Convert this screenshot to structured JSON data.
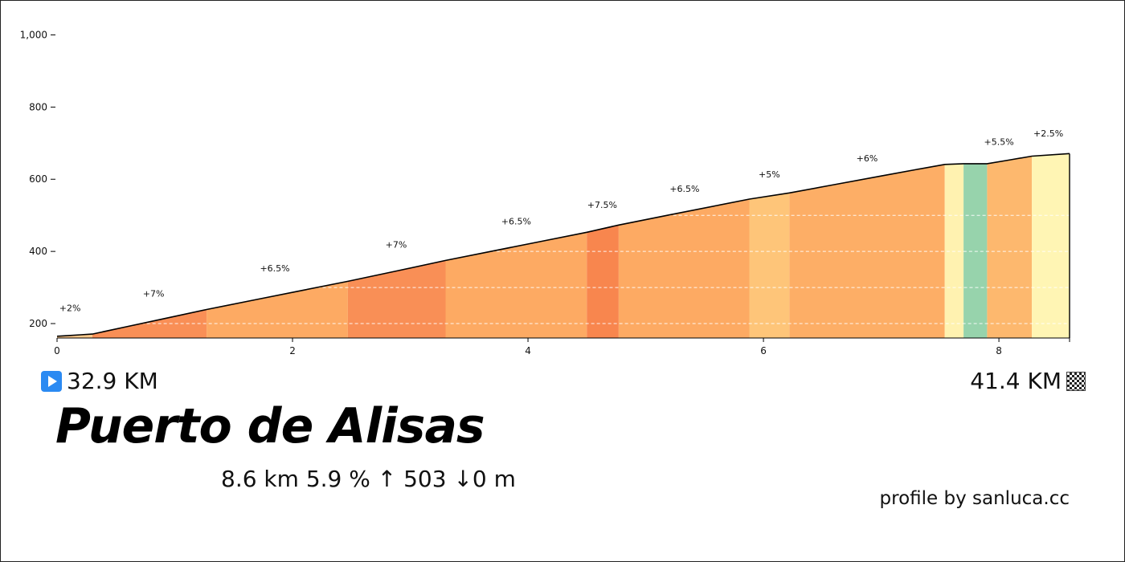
{
  "climb": {
    "name": "Puerto de Alisas",
    "start_km": "32.9 KM",
    "end_km": "41.4 KM",
    "stats": "8.6 km 5.9 %  ↑ 503 ↓0 m",
    "credit": "profile by sanluca.cc",
    "start_icon": "play-start-icon",
    "finish_icon": "checkered-flag-icon"
  },
  "chart_data": {
    "type": "area",
    "title": "",
    "xlabel": "",
    "ylabel": "",
    "xlim": [
      0,
      8.6
    ],
    "ylim": [
      160,
      1050
    ],
    "grid": "dashed horizontal lines inside filled area",
    "x_ticks": [
      {
        "value": 0,
        "label": "0"
      },
      {
        "value": 2,
        "label": "2"
      },
      {
        "value": 4,
        "label": "4"
      },
      {
        "value": 6,
        "label": "6"
      },
      {
        "value": 8,
        "label": "8"
      }
    ],
    "y_ticks": [
      {
        "value": 200,
        "label": "200"
      },
      {
        "value": 400,
        "label": "400"
      },
      {
        "value": 600,
        "label": "600"
      },
      {
        "value": 800,
        "label": "800"
      },
      {
        "value": 1000,
        "label": "1,000"
      }
    ],
    "grid_values": [
      200,
      300,
      400,
      500
    ],
    "segments": [
      {
        "x0": 0.0,
        "x1": 0.3,
        "grade": "+2%",
        "color": "#fec98a"
      },
      {
        "x0": 0.3,
        "x1": 1.27,
        "grade": "+7%",
        "color": "#f98f56"
      },
      {
        "x0": 1.27,
        "x1": 2.47,
        "grade": "+6.5%",
        "color": "#fdaa63"
      },
      {
        "x0": 2.47,
        "x1": 3.3,
        "grade": "+7%",
        "color": "#f98f56"
      },
      {
        "x0": 3.3,
        "x1": 4.5,
        "grade": "+6.5%",
        "color": "#fdaa63"
      },
      {
        "x0": 4.5,
        "x1": 4.77,
        "grade": "+7.5%",
        "color": "#f8864e"
      },
      {
        "x0": 4.77,
        "x1": 5.88,
        "grade": "+6.5%",
        "color": "#fdaa63"
      },
      {
        "x0": 5.88,
        "x1": 6.22,
        "grade": "+5%",
        "color": "#fec579"
      },
      {
        "x0": 6.22,
        "x1": 7.54,
        "grade": "+6%",
        "color": "#fdae66"
      },
      {
        "x0": 7.54,
        "x1": 7.7,
        "grade": "",
        "color": "#fff2b0"
      },
      {
        "x0": 7.7,
        "x1": 7.9,
        "grade": "",
        "color": "#97d3ac"
      },
      {
        "x0": 7.9,
        "x1": 8.28,
        "grade": "+5.5%",
        "color": "#fdb86e"
      },
      {
        "x0": 8.28,
        "x1": 8.6,
        "grade": "+2.5%",
        "color": "#fff5b4"
      }
    ],
    "grade_labels": [
      {
        "x": 0.11,
        "y": 235,
        "text": "+2%"
      },
      {
        "x": 0.82,
        "y": 275,
        "text": "+7%"
      },
      {
        "x": 1.85,
        "y": 345,
        "text": "+6.5%"
      },
      {
        "x": 2.88,
        "y": 410,
        "text": "+7%"
      },
      {
        "x": 3.9,
        "y": 475,
        "text": "+6.5%"
      },
      {
        "x": 4.63,
        "y": 520,
        "text": "+7.5%"
      },
      {
        "x": 5.33,
        "y": 565,
        "text": "+6.5%"
      },
      {
        "x": 6.05,
        "y": 605,
        "text": "+5%"
      },
      {
        "x": 8.0,
        "y": 695,
        "text": "+5.5%"
      },
      {
        "x": 6.88,
        "y": 650,
        "text": "+6%"
      },
      {
        "x": 8.42,
        "y": 718,
        "text": "+2.5%"
      }
    ],
    "profile": [
      [
        0,
        165
      ],
      [
        0.1,
        167
      ],
      [
        0.2,
        169
      ],
      [
        0.3,
        171
      ],
      [
        0.6,
        192
      ],
      [
        0.9,
        213
      ],
      [
        1.27,
        239
      ],
      [
        1.7,
        267
      ],
      [
        2.1,
        293
      ],
      [
        2.47,
        317
      ],
      [
        2.9,
        347
      ],
      [
        3.3,
        375
      ],
      [
        3.7,
        401
      ],
      [
        4.1,
        427
      ],
      [
        4.5,
        453
      ],
      [
        4.77,
        473
      ],
      [
        5.2,
        501
      ],
      [
        5.6,
        527
      ],
      [
        5.88,
        545
      ],
      [
        6.22,
        562
      ],
      [
        6.6,
        585
      ],
      [
        7.0,
        609
      ],
      [
        7.3,
        627
      ],
      [
        7.54,
        641
      ],
      [
        7.7,
        643
      ],
      [
        7.9,
        643
      ],
      [
        8.1,
        654
      ],
      [
        8.28,
        664
      ],
      [
        8.6,
        671
      ]
    ]
  }
}
